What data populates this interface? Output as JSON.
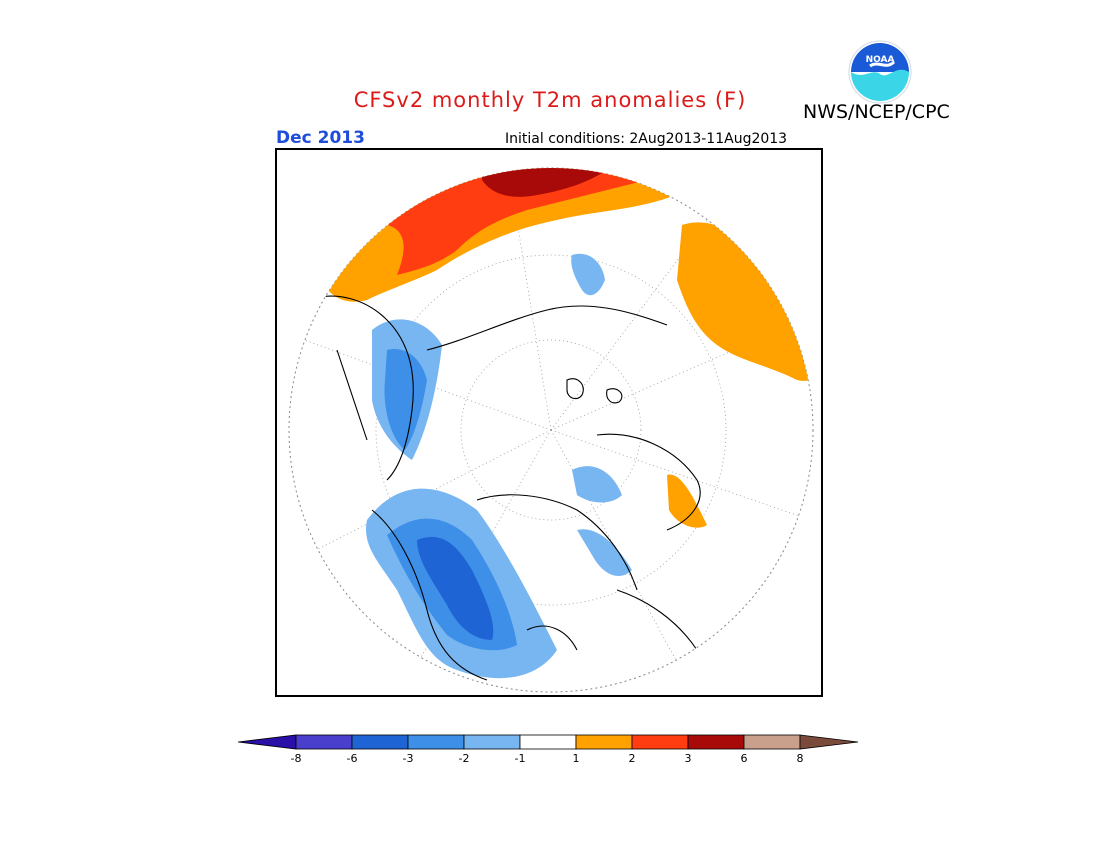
{
  "header": {
    "title": "CFSv2 monthly T2m anomalies (F)",
    "agency": "NWS/NCEP/CPC",
    "month": "Dec 2013",
    "initial_conditions": "Initial conditions: 2Aug2013-11Aug2013",
    "logo_text": "NOAA"
  },
  "colors": {
    "title": "#dd1a1a",
    "month": "#1f4ddb",
    "logo_blue": "#1a5ad6",
    "logo_cyan": "#3ad6e8"
  },
  "legend": {
    "labels": [
      "-8",
      "-6",
      "-3",
      "-2",
      "-1",
      "1",
      "2",
      "3",
      "6",
      "8"
    ],
    "colors": [
      "#2a0fa8",
      "#4a3fcc",
      "#1f64d4",
      "#3d8fe8",
      "#78b6f2",
      "#ffffff",
      "#ffa200",
      "#ff3d10",
      "#a80a0a",
      "#c8a08c",
      "#7a4a3a"
    ]
  }
}
